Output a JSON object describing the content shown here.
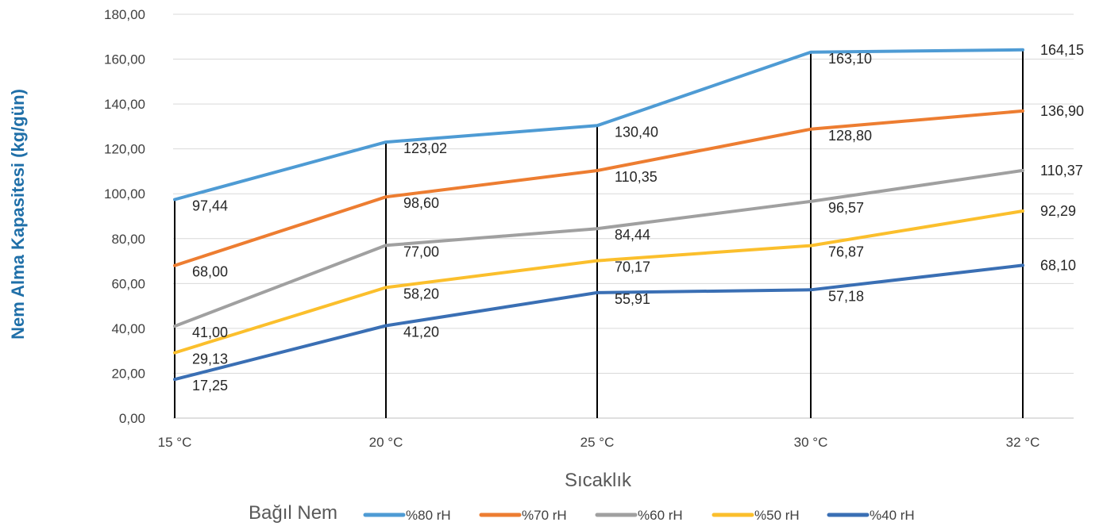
{
  "chart_data": {
    "type": "line",
    "categories": [
      "15 °C",
      "20 °C",
      "25 °C",
      "30 °C",
      "32 °C"
    ],
    "xlabel": "Sıcaklık",
    "ylabel": "Nem Alma Kapasitesi (kg/gün)",
    "ylim": [
      0,
      180
    ],
    "yticks": [
      "0,00",
      "20,00",
      "40,00",
      "60,00",
      "80,00",
      "100,00",
      "120,00",
      "140,00",
      "160,00",
      "180,00"
    ],
    "grid": true,
    "legend_title": "Bağıl Nem",
    "legend_position": "bottom",
    "series": [
      {
        "name": "%80 rH",
        "color": "#4e9bd4",
        "values": [
          97.44,
          123.02,
          130.4,
          163.1,
          164.15
        ],
        "labels": [
          "97,44",
          "123,02",
          "130,40",
          "163,10",
          "164,15"
        ]
      },
      {
        "name": "%70 rH",
        "color": "#ed7d31",
        "values": [
          68.0,
          98.6,
          110.35,
          128.8,
          136.9
        ],
        "labels": [
          "68,00",
          "98,60",
          "110,35",
          "128,80",
          "136,90"
        ]
      },
      {
        "name": "%60 rH",
        "color": "#a0a0a0",
        "values": [
          41.0,
          77.0,
          84.44,
          96.57,
          110.37
        ],
        "labels": [
          "41,00",
          "77,00",
          "84,44",
          "96,57",
          "110,37"
        ]
      },
      {
        "name": "%50 rH",
        "color": "#fbbf2c",
        "values": [
          29.13,
          58.2,
          70.17,
          76.87,
          92.29
        ],
        "labels": [
          "29,13",
          "58,20",
          "70,17",
          "76,87",
          "92,29"
        ]
      },
      {
        "name": "%40 rH",
        "color": "#3a6fb4",
        "values": [
          17.25,
          41.2,
          55.91,
          57.18,
          68.1
        ],
        "labels": [
          "17,25",
          "41,20",
          "55,91",
          "57,18",
          "68,10"
        ]
      }
    ]
  }
}
